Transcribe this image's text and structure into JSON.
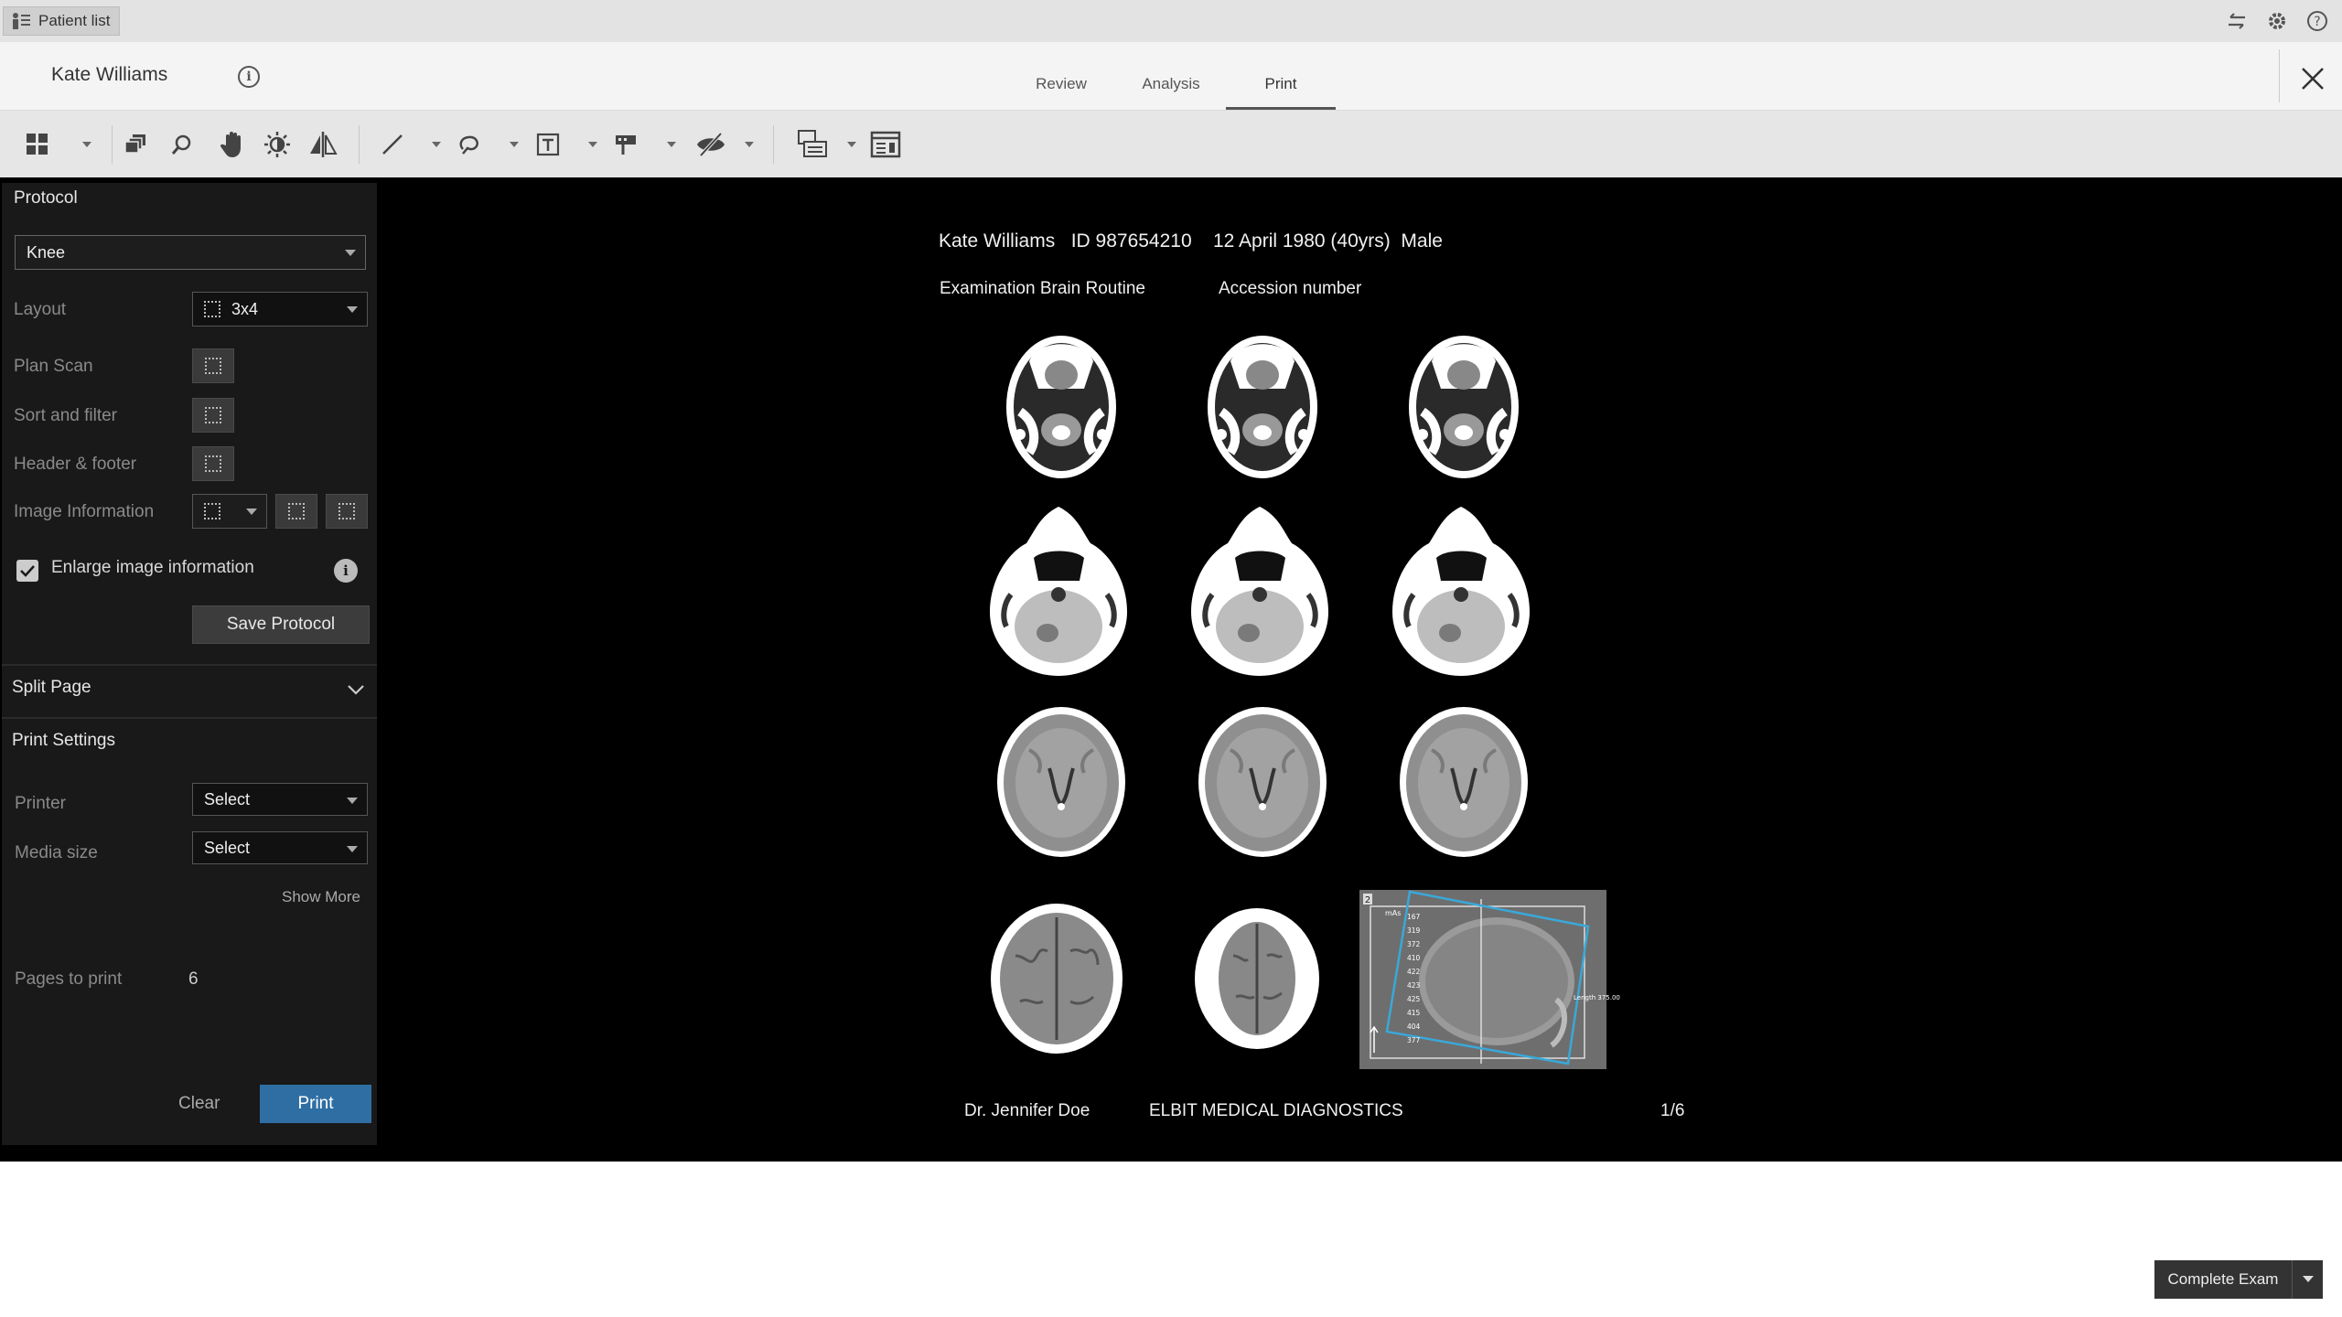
{
  "topbar": {
    "patient_list_label": "Patient list",
    "icons": [
      "swap-icon",
      "gear-icon",
      "help-icon"
    ]
  },
  "header": {
    "patient_name": "Kate Williams",
    "tabs": [
      {
        "label": "Review",
        "active": false
      },
      {
        "label": "Analysis",
        "active": false
      },
      {
        "label": "Print",
        "active": true
      }
    ]
  },
  "toolbar": {
    "tools": [
      "layout-grid-icon",
      "stack-icon",
      "zoom-icon",
      "pan-hand-icon",
      "brightness-icon",
      "flip-icon",
      "line-measure-icon",
      "roi-freehand-icon",
      "text-annotation-icon",
      "marker-icon",
      "hide-overlay-icon",
      "window-layout-icon",
      "image-info-icon"
    ]
  },
  "panel": {
    "protocol_title": "Protocol",
    "protocol_value": "Knee",
    "layout_label": "Layout",
    "layout_value": "3x4",
    "plan_scan_label": "Plan Scan",
    "sort_filter_label": "Sort and filter",
    "header_footer_label": "Header & footer",
    "image_info_label": "Image Information",
    "enlarge_label": "Enlarge image information",
    "enlarge_checked": true,
    "save_protocol_label": "Save Protocol",
    "split_page_label": "Split Page",
    "print_settings_title": "Print Settings",
    "printer_label": "Printer",
    "printer_value": "Select",
    "media_size_label": "Media size",
    "media_size_value": "Select",
    "show_more_label": "Show More",
    "pages_to_print_label": "Pages to print",
    "pages_to_print_value": "6",
    "clear_label": "Clear",
    "print_label": "Print"
  },
  "preview": {
    "patient_line": "Kate Williams   ID 987654210    12 April 1980 (40yrs)  Male",
    "exam_label": "Examination Brain Routine",
    "accession_label": "Accession number",
    "doctor": "Dr. Jennifer Doe",
    "institution": "ELBIT MEDICAL DIAGNOSTICS",
    "page_indicator": "1/6",
    "scout_index": "2",
    "scout_top_label": "mAs",
    "scout_values": [
      "167",
      "319",
      "372",
      "410",
      "422",
      "423",
      "425",
      "415",
      "404",
      "377"
    ],
    "scout_right_label": "Length 375.00"
  },
  "footer": {
    "complete_exam_label": "Complete Exam"
  }
}
